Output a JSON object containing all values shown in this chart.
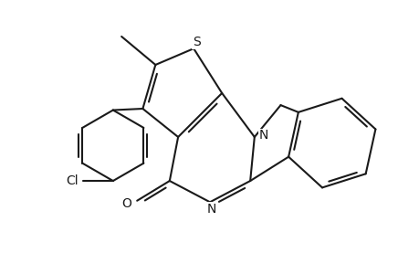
{
  "bg_color": "#ffffff",
  "bond_color": "#1a1a1a",
  "lw": 1.5,
  "figsize": [
    4.6,
    3.0
  ],
  "dpi": 100,
  "xlim": [
    -2.2,
    3.5
  ],
  "ylim": [
    -1.8,
    2.0
  ]
}
